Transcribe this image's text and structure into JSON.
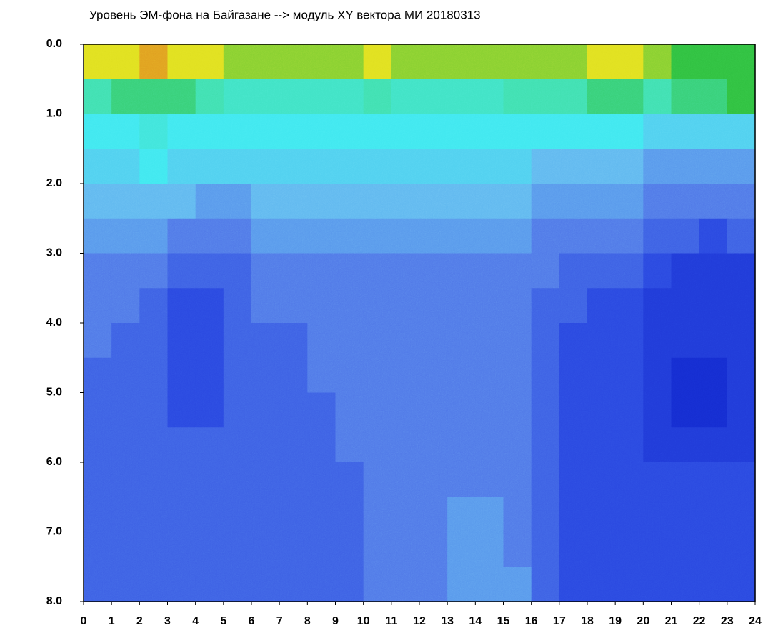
{
  "chart_data": {
    "type": "heatmap",
    "title": "Уровень ЭМ-фона на Байгазане  --> модуль XY вектора МИ  20180313",
    "xlim": [
      0,
      24
    ],
    "xticks": [
      0,
      1,
      2,
      3,
      4,
      5,
      6,
      7,
      8,
      9,
      10,
      11,
      12,
      13,
      14,
      15,
      16,
      17,
      18,
      19,
      20,
      21,
      22,
      23,
      24
    ],
    "ylim": [
      0,
      8
    ],
    "y_inverted": true,
    "yticks": [
      {
        "value": 0,
        "label": "0.0"
      },
      {
        "value": 1,
        "label": "1.0"
      },
      {
        "value": 2,
        "label": "2.0"
      },
      {
        "value": 3,
        "label": "3.0"
      },
      {
        "value": 4,
        "label": "4.0"
      },
      {
        "value": 5,
        "label": "5.0"
      },
      {
        "value": 6,
        "label": "6.0"
      },
      {
        "value": 7,
        "label": "7.0"
      },
      {
        "value": 8,
        "label": "8.0"
      }
    ],
    "x_edges": [
      0,
      1,
      2,
      3,
      4,
      5,
      6,
      7,
      8,
      9,
      10,
      11,
      12,
      13,
      14,
      15,
      16,
      17,
      18,
      19,
      20,
      21,
      22,
      23,
      24
    ],
    "y_edges": [
      0,
      0.5,
      1,
      1.5,
      2,
      2.5,
      3,
      3.5,
      4,
      4.5,
      5,
      5.5,
      6,
      6.5,
      7,
      7.5,
      8
    ],
    "colorscale": [
      [
        0,
        "#0010c0"
      ],
      [
        2,
        "#2a48e0"
      ],
      [
        3,
        "#5078e8"
      ],
      [
        4,
        "#60b8f0"
      ],
      [
        5,
        "#40e8f0"
      ],
      [
        6.5,
        "#40e0b0"
      ],
      [
        7.5,
        "#30c040"
      ],
      [
        8.5,
        "#e0e020"
      ],
      [
        10,
        "#e02020"
      ]
    ],
    "z": [
      [
        8.5,
        8.5,
        9,
        8.5,
        8.5,
        8,
        8,
        8,
        8,
        8,
        8.5,
        8,
        8,
        8,
        8,
        8,
        8,
        8,
        8.5,
        8.5,
        8,
        7.5,
        7.5,
        7.5
      ],
      [
        6.5,
        7,
        7,
        7,
        6.5,
        6,
        6,
        6,
        6,
        6,
        6.5,
        6,
        6,
        6,
        6,
        6.5,
        6.5,
        6.5,
        7,
        7,
        6.5,
        7,
        7,
        7.5
      ],
      [
        5,
        5,
        5.5,
        5,
        5,
        5,
        5,
        5,
        5,
        5,
        5,
        5,
        5,
        5,
        5,
        5,
        5,
        5,
        5,
        5,
        4.5,
        4.5,
        4.5,
        4.5
      ],
      [
        4.5,
        4.5,
        5,
        4.5,
        4.5,
        4.5,
        4.5,
        4.5,
        4.5,
        4.5,
        4.5,
        4.5,
        4.5,
        4.5,
        4.5,
        4.5,
        4,
        4,
        4,
        4,
        3.5,
        3.5,
        3.5,
        3.5
      ],
      [
        4,
        4,
        4,
        4,
        3.5,
        3.5,
        4,
        4,
        4,
        4,
        4,
        4,
        4,
        4,
        4,
        4,
        3.5,
        3.5,
        3.5,
        3.5,
        3,
        3,
        3,
        3
      ],
      [
        3.5,
        3.5,
        3.5,
        3,
        3,
        3,
        3.5,
        3.5,
        3.5,
        3.5,
        3.5,
        3.5,
        3.5,
        3.5,
        3.5,
        3.5,
        3,
        3,
        3,
        3,
        2.5,
        2.5,
        2,
        2.5
      ],
      [
        3,
        3,
        3,
        2.5,
        2.5,
        2.5,
        3,
        3,
        3,
        3,
        3,
        3,
        3,
        3,
        3,
        3,
        3,
        2.5,
        2.5,
        2.5,
        2,
        1.5,
        1.5,
        1.5
      ],
      [
        3,
        3,
        2.5,
        2,
        2,
        2.5,
        3,
        3,
        3,
        3,
        3,
        3,
        3,
        3,
        3,
        3,
        2.5,
        2.5,
        2,
        2,
        1.5,
        1.5,
        1.5,
        1.5
      ],
      [
        3,
        2.5,
        2.5,
        2,
        2,
        2.5,
        2.5,
        2.5,
        3,
        3,
        3,
        3,
        3,
        3,
        3,
        3,
        2.5,
        2,
        2,
        2,
        1.5,
        1.5,
        1.5,
        1.5
      ],
      [
        2.5,
        2.5,
        2.5,
        2,
        2,
        2.5,
        2.5,
        2.5,
        3,
        3,
        3,
        3,
        3,
        3,
        3,
        3,
        2.5,
        2,
        2,
        2,
        1.5,
        1,
        1,
        1.5
      ],
      [
        2.5,
        2.5,
        2.5,
        2,
        2,
        2.5,
        2.5,
        2.5,
        2.5,
        3,
        3,
        3,
        3,
        3,
        3,
        3,
        2.5,
        2,
        2,
        2,
        1.5,
        1,
        1,
        1.5
      ],
      [
        2.5,
        2.5,
        2.5,
        2.5,
        2.5,
        2.5,
        2.5,
        2.5,
        2.5,
        3,
        3,
        3,
        3,
        3,
        3,
        3,
        2.5,
        2,
        2,
        2,
        1.5,
        1.5,
        1.5,
        1.5
      ],
      [
        2.5,
        2.5,
        2.5,
        2.5,
        2.5,
        2.5,
        2.5,
        2.5,
        2.5,
        2.5,
        3,
        3,
        3,
        3,
        3,
        3,
        2.5,
        2,
        2,
        2,
        2,
        2,
        2,
        2
      ],
      [
        2.5,
        2.5,
        2.5,
        2.5,
        2.5,
        2.5,
        2.5,
        2.5,
        2.5,
        2.5,
        3,
        3,
        3,
        3.5,
        3.5,
        3,
        2.5,
        2,
        2,
        2,
        2,
        2,
        2,
        2
      ],
      [
        2.5,
        2.5,
        2.5,
        2.5,
        2.5,
        2.5,
        2.5,
        2.5,
        2.5,
        2.5,
        3,
        3,
        3,
        3.5,
        3.5,
        3,
        2.5,
        2,
        2,
        2,
        2,
        2,
        2,
        2
      ],
      [
        2.5,
        2.5,
        2.5,
        2.5,
        2.5,
        2.5,
        2.5,
        2.5,
        2.5,
        2.5,
        3,
        3,
        3,
        3.5,
        3.5,
        3.5,
        2.5,
        2,
        2,
        2,
        2,
        2,
        2,
        2
      ]
    ]
  }
}
